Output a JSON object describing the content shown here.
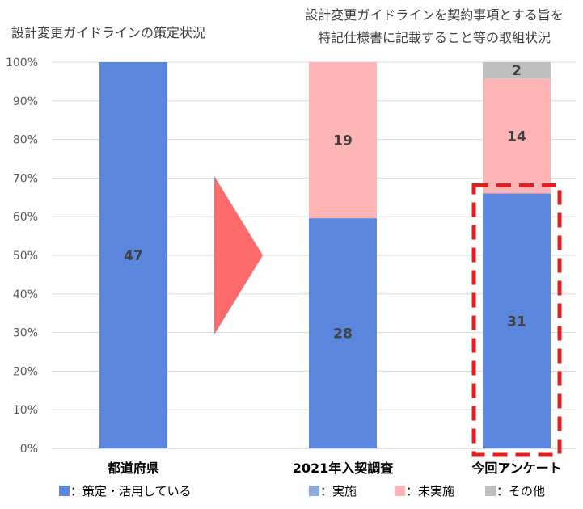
{
  "chart_data": {
    "type": "bar",
    "stacked": true,
    "categories": [
      "都道府県",
      "2021年入契調査",
      "今回アンケート"
    ],
    "titles": {
      "left": "設計変更ガイドラインの策定状況",
      "right_line1": "設計変更ガイドラインを契約事項とする旨を",
      "right_line2": "特記仕様書に記載すること等の取組状況"
    },
    "y_ticks": [
      "0%",
      "10%",
      "20%",
      "30%",
      "40%",
      "50%",
      "60%",
      "70%",
      "80%",
      "90%",
      "100%"
    ],
    "ylim": [
      0,
      100
    ],
    "grid": true,
    "bars": [
      {
        "category": "都道府県",
        "segments": [
          {
            "series": "策定・活用している",
            "count": 47,
            "pct": 100,
            "color": "#5B86DD"
          }
        ]
      },
      {
        "category": "2021年入契調査",
        "segments": [
          {
            "series": "実施",
            "count": 28,
            "pct": 59.6,
            "color": "#5B86DD"
          },
          {
            "series": "未実施",
            "count": 19,
            "pct": 40.4,
            "color": "#FFB5B5"
          }
        ]
      },
      {
        "category": "今回アンケート",
        "segments": [
          {
            "series": "実施",
            "count": 31,
            "pct": 66.0,
            "color": "#5B86DD"
          },
          {
            "series": "未実施",
            "count": 14,
            "pct": 29.8,
            "color": "#FFB5B5"
          },
          {
            "series": "その他",
            "count": 2,
            "pct": 4.2,
            "color": "#BFBFBF"
          }
        ]
      }
    ],
    "highlight_category": "今回アンケート",
    "highlight_color": "#E02020",
    "arrow_color": "#FF6B6B",
    "legends": {
      "left": [
        {
          "label": "：策定・活用している",
          "color": "#5B86DD"
        }
      ],
      "right": [
        {
          "label": "：実施",
          "color": "#8EAADB"
        },
        {
          "label": "：未実施",
          "color": "#FFB5B5"
        },
        {
          "label": "：その他",
          "color": "#BFBFBF"
        }
      ]
    }
  }
}
